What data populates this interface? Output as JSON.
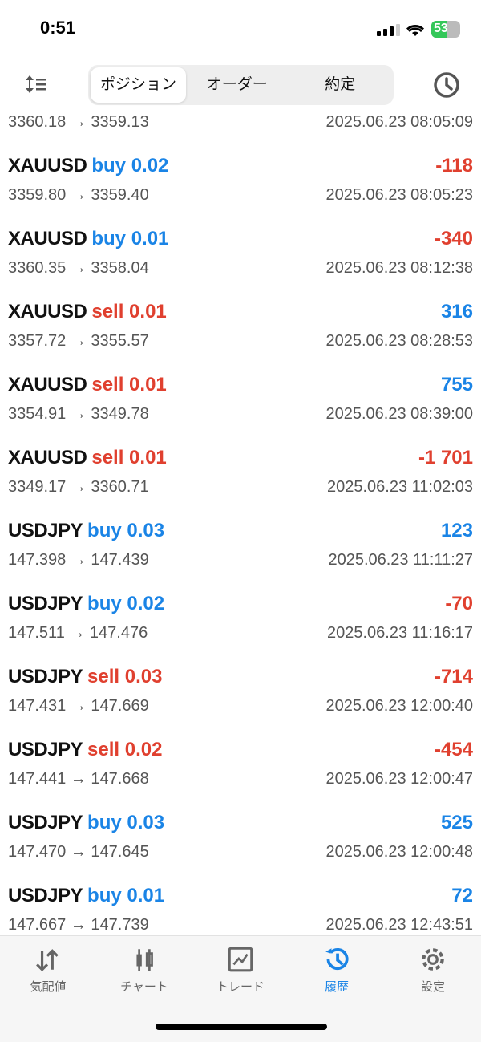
{
  "status_bar": {
    "time": "0:51",
    "battery": "53"
  },
  "header": {
    "tabs": [
      "ポジション",
      "オーダー",
      "約定"
    ],
    "active_tab": 0
  },
  "colors": {
    "buy": "#1a84e6",
    "sell": "#e0402f",
    "profit_pos": "#1a84e6",
    "profit_neg": "#e0402f",
    "active_nav": "#1a84e6"
  },
  "rows": [
    {
      "symbol": "",
      "side": "",
      "volume": "",
      "profit": "",
      "prices": "3360.18 → 3359.13",
      "time": "2025.06.23 08:05:09"
    },
    {
      "symbol": "XAUUSD",
      "side": "buy",
      "volume": "0.02",
      "profit": "-118",
      "prices": "3359.80 → 3359.40",
      "time": "2025.06.23 08:05:23"
    },
    {
      "symbol": "XAUUSD",
      "side": "buy",
      "volume": "0.01",
      "profit": "-340",
      "prices": "3360.35 → 3358.04",
      "time": "2025.06.23 08:12:38"
    },
    {
      "symbol": "XAUUSD",
      "side": "sell",
      "volume": "0.01",
      "profit": "316",
      "prices": "3357.72 → 3355.57",
      "time": "2025.06.23 08:28:53"
    },
    {
      "symbol": "XAUUSD",
      "side": "sell",
      "volume": "0.01",
      "profit": "755",
      "prices": "3354.91 → 3349.78",
      "time": "2025.06.23 08:39:00"
    },
    {
      "symbol": "XAUUSD",
      "side": "sell",
      "volume": "0.01",
      "profit": "-1 701",
      "prices": "3349.17 → 3360.71",
      "time": "2025.06.23 11:02:03"
    },
    {
      "symbol": "USDJPY",
      "side": "buy",
      "volume": "0.03",
      "profit": "123",
      "prices": "147.398 → 147.439",
      "time": "2025.06.23 11:11:27"
    },
    {
      "symbol": "USDJPY",
      "side": "buy",
      "volume": "0.02",
      "profit": "-70",
      "prices": "147.511 → 147.476",
      "time": "2025.06.23 11:16:17"
    },
    {
      "symbol": "USDJPY",
      "side": "sell",
      "volume": "0.03",
      "profit": "-714",
      "prices": "147.431 → 147.669",
      "time": "2025.06.23 12:00:40"
    },
    {
      "symbol": "USDJPY",
      "side": "sell",
      "volume": "0.02",
      "profit": "-454",
      "prices": "147.441 → 147.668",
      "time": "2025.06.23 12:00:47"
    },
    {
      "symbol": "USDJPY",
      "side": "buy",
      "volume": "0.03",
      "profit": "525",
      "prices": "147.470 → 147.645",
      "time": "2025.06.23 12:00:48"
    },
    {
      "symbol": "USDJPY",
      "side": "buy",
      "volume": "0.01",
      "profit": "72",
      "prices": "147.667 → 147.739",
      "time": "2025.06.23 12:43:51"
    }
  ],
  "nav": [
    {
      "label": "気配値",
      "icon": "quotes-arrows-icon"
    },
    {
      "label": "チャート",
      "icon": "candlestick-icon"
    },
    {
      "label": "トレード",
      "icon": "trade-chart-icon"
    },
    {
      "label": "履歴",
      "icon": "history-icon"
    },
    {
      "label": "設定",
      "icon": "gear-icon"
    }
  ],
  "active_nav": 3
}
